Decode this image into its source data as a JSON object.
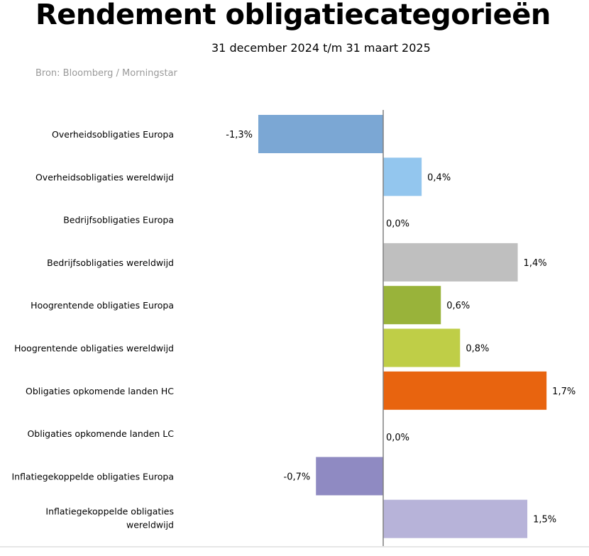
{
  "chart_data": {
    "type": "bar",
    "orientation": "horizontal",
    "title": "Rendement obligatiecategorieën",
    "subtitle": "31 december 2024 t/m 31 maart 2025",
    "source": "Bron: Bloomberg / Morningstar",
    "categories": [
      "Overheidsobligaties Europa",
      "Overheidsobligaties wereldwijd",
      "Bedrijfsobligaties Europa",
      "Bedrijfsobligaties wereldwijd",
      "Hoogrentende obligaties Europa",
      "Hoogrentende obligaties wereldwijd",
      "Obligaties opkomende landen HC",
      "Obligaties opkomende landen LC",
      "Inflatiegekoppelde obligaties Europa",
      "Inflatiegekoppelde obligaties wereldwijd"
    ],
    "values": [
      -1.3,
      0.4,
      0.0,
      1.4,
      0.6,
      0.8,
      1.7,
      0.0,
      -0.7,
      1.5
    ],
    "data_labels": [
      "-1,3%",
      "0,4%",
      "0,0%",
      "1,4%",
      "0,6%",
      "0,8%",
      "1,7%",
      "0,0%",
      "-0,7%",
      "1,5%"
    ],
    "colors": [
      "#7BA7D4",
      "#93C6EE",
      "#BFBFBF",
      "#BFBFBF",
      "#99B33A",
      "#BFCE47",
      "#E8640F",
      "#E8640F",
      "#8F8AC2",
      "#B7B3D9"
    ],
    "unit": "%",
    "grid": false,
    "legend": "none"
  }
}
